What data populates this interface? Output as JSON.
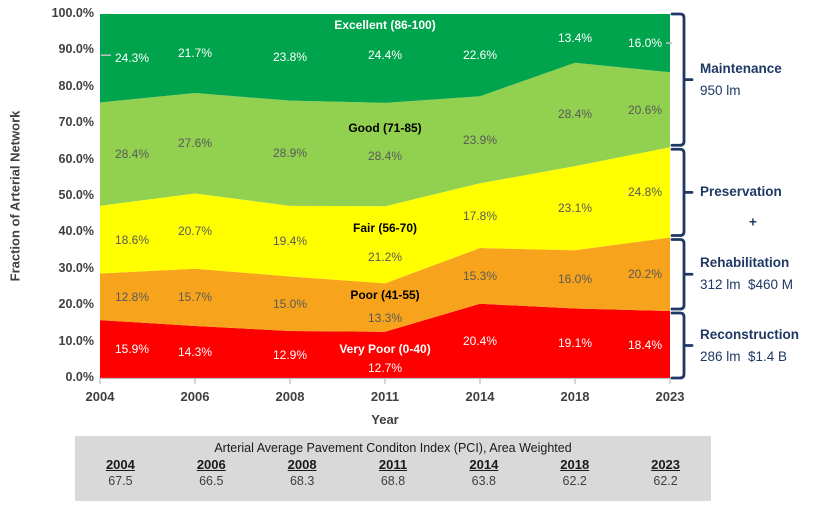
{
  "chart_data": {
    "type": "area",
    "stacked": true,
    "title": "",
    "categories": [
      "2004",
      "2006",
      "2008",
      "2011",
      "2014",
      "2018",
      "2023"
    ],
    "series": [
      {
        "name": "Very Poor (0-40)",
        "values": [
          15.9,
          14.3,
          12.9,
          12.7,
          20.4,
          19.1,
          18.4
        ],
        "color": "#FE0000",
        "label_color": "#FFFFFF",
        "name_color": "#FFFFFF"
      },
      {
        "name": "Poor (41-55)",
        "values": [
          12.8,
          15.7,
          15.0,
          13.3,
          15.3,
          16.0,
          20.2
        ],
        "color": "#F7A41C",
        "label_color": "#595959",
        "name_color": "#000000"
      },
      {
        "name": "Fair (56-70)",
        "values": [
          18.6,
          20.7,
          19.4,
          21.2,
          17.8,
          23.1,
          24.8
        ],
        "color": "#FFFF00",
        "label_color": "#595959",
        "name_color": "#000000"
      },
      {
        "name": "Good (71-85)",
        "values": [
          28.4,
          27.6,
          28.9,
          28.4,
          23.9,
          28.4,
          20.6
        ],
        "color": "#92D050",
        "label_color": "#595959",
        "name_color": "#000000"
      },
      {
        "name": "Excellent (86-100)",
        "values": [
          24.3,
          21.7,
          23.8,
          24.4,
          22.6,
          13.4,
          16.0
        ],
        "color": "#00A44D",
        "label_color": "#FFFFFF",
        "name_color": "#FFFFFF"
      }
    ],
    "xlabel": "Year",
    "ylabel": "Fraction of Arterial Network",
    "ylim": [
      0,
      100
    ],
    "ytick_step": 10,
    "ytick_format": "0.0%",
    "grid": false,
    "legend_position": "labels-in-plot"
  },
  "right_groups": [
    {
      "title": "Maintenance",
      "subtitle": "950 lm",
      "covers": [
        3,
        4
      ]
    },
    {
      "title": "Preservation",
      "subtitle": "",
      "covers": [
        2
      ]
    },
    {
      "title": "Rehabilitation",
      "subtitle": "312 lm  $460 M",
      "covers": [
        1
      ]
    },
    {
      "title": "Reconstruction",
      "subtitle": "286 lm  $1.4 B",
      "covers": [
        0
      ]
    }
  ],
  "plus_label": "+",
  "pci_table": {
    "title": "Arterial Average Pavement Conditon Index (PCI), Area Weighted",
    "years": [
      "2004",
      "2006",
      "2008",
      "2011",
      "2014",
      "2018",
      "2023"
    ],
    "values": [
      "67.5",
      "66.5",
      "68.3",
      "68.8",
      "63.8",
      "62.2",
      "62.2"
    ]
  },
  "colors": {
    "bracket": "#1F3864",
    "axis_line": "#BFBFBF",
    "leader_line": "#BFBFBF",
    "tick_text": "#404040",
    "table_bg": "#D9D9D9"
  }
}
